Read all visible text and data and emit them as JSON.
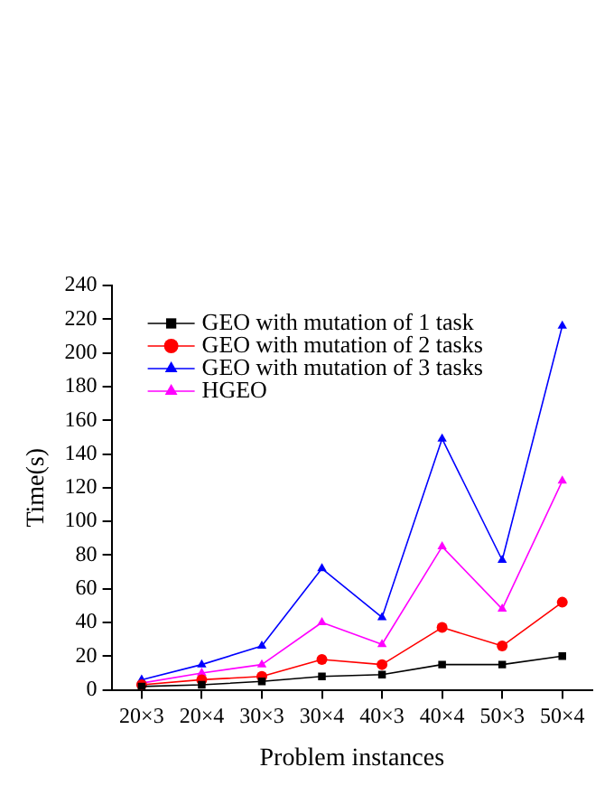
{
  "chart_data": {
    "type": "line",
    "xlabel": "Problem instances",
    "ylabel": "Time(s)",
    "categories": [
      "20×3",
      "20×4",
      "30×3",
      "30×4",
      "40×3",
      "40×4",
      "50×3",
      "50×4"
    ],
    "series": [
      {
        "name": "GEO with mutation of 1 task",
        "color": "#000000",
        "marker": "square",
        "values": [
          2,
          3,
          5,
          8,
          9,
          15,
          15,
          20
        ]
      },
      {
        "name": "GEO with mutation of 2 tasks",
        "color": "#ff0000",
        "marker": "circle",
        "values": [
          3,
          6,
          8,
          18,
          15,
          37,
          26,
          52
        ]
      },
      {
        "name": "GEO with mutation of 3 tasks",
        "color": "#0000ff",
        "marker": "triangle",
        "values": [
          6,
          15,
          26,
          72,
          43,
          149,
          77,
          216
        ]
      },
      {
        "name": "HGEO",
        "color": "#ff00ff",
        "marker": "triangle",
        "values": [
          4,
          10,
          15,
          40,
          27,
          85,
          48,
          124
        ]
      }
    ],
    "ylim": [
      0,
      240
    ],
    "yticks": [
      0,
      20,
      40,
      60,
      80,
      100,
      120,
      140,
      160,
      180,
      200,
      220,
      240
    ],
    "grid": false,
    "legend": "top left",
    "line_style": "solid"
  }
}
